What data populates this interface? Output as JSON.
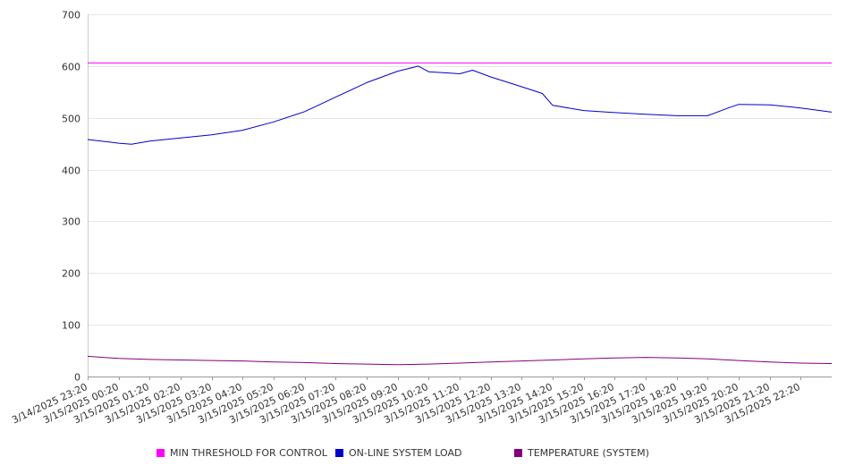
{
  "chart_data": {
    "type": "line",
    "title": "",
    "xlabel": "",
    "ylabel": "",
    "ylim": [
      0,
      700
    ],
    "yticks": [
      0,
      100,
      200,
      300,
      400,
      500,
      600,
      700
    ],
    "grid": true,
    "legend_position": "bottom",
    "x_start": "3/14/2025 23:20",
    "x_step_minutes": 5,
    "x_points": 289,
    "x_tick_labels": [
      "3/14/2025 23:20",
      "3/15/2025 00:20",
      "3/15/2025 01:20",
      "3/15/2025 02:20",
      "3/15/2025 03:20",
      "3/15/2025 04:20",
      "3/15/2025 05:20",
      "3/15/2025 06:20",
      "3/15/2025 07:20",
      "3/15/2025 08:20",
      "3/15/2025 09:20",
      "3/15/2025 10:20",
      "3/15/2025 11:20",
      "3/15/2025 12:20",
      "3/15/2025 13:20",
      "3/15/2025 14:20",
      "3/15/2025 15:20",
      "3/15/2025 16:20",
      "3/15/2025 17:20",
      "3/15/2025 18:20",
      "3/15/2025 19:20",
      "3/15/2025 20:20",
      "3/15/2025 21:20",
      "3/15/2025 22:20"
    ],
    "series": [
      {
        "name": "MIN THRESHOLD FOR CONTROL",
        "color": "#ff00ff",
        "x": [
          "3/14/2025 23:20",
          "3/15/2025 23:20"
        ],
        "values": [
          606,
          606
        ]
      },
      {
        "name": "ON-LINE SYSTEM LOAD",
        "color": "#0000cc",
        "x": [
          "3/14/2025 23:20",
          "3/15/2025 00:20",
          "3/15/2025 00:45",
          "3/15/2025 01:20",
          "3/15/2025 02:20",
          "3/15/2025 03:20",
          "3/15/2025 04:20",
          "3/15/2025 05:20",
          "3/15/2025 06:20",
          "3/15/2025 07:20",
          "3/15/2025 08:20",
          "3/15/2025 09:20",
          "3/15/2025 10:00",
          "3/15/2025 10:20",
          "3/15/2025 11:20",
          "3/15/2025 11:45",
          "3/15/2025 12:20",
          "3/15/2025 13:20",
          "3/15/2025 14:00",
          "3/15/2025 14:20",
          "3/15/2025 15:20",
          "3/15/2025 16:20",
          "3/15/2025 17:20",
          "3/15/2025 18:20",
          "3/15/2025 19:20",
          "3/15/2025 20:00",
          "3/15/2025 20:20",
          "3/15/2025 21:20",
          "3/15/2025 22:20",
          "3/15/2025 23:20"
        ],
        "values": [
          458,
          451,
          449,
          455,
          461,
          467,
          476,
          492,
          512,
          540,
          568,
          590,
          600,
          589,
          585,
          592,
          579,
          560,
          547,
          524,
          514,
          510,
          507,
          504,
          504,
          519,
          526,
          525,
          519,
          511
        ]
      },
      {
        "name": "TEMPERATURE (SYSTEM)",
        "color": "#800080",
        "x": [
          "3/14/2025 23:20",
          "3/15/2025 00:20",
          "3/15/2025 01:20",
          "3/15/2025 02:20",
          "3/15/2025 03:20",
          "3/15/2025 04:20",
          "3/15/2025 05:20",
          "3/15/2025 06:20",
          "3/15/2025 07:20",
          "3/15/2025 08:20",
          "3/15/2025 09:20",
          "3/15/2025 10:20",
          "3/15/2025 11:20",
          "3/15/2025 12:20",
          "3/15/2025 13:20",
          "3/15/2025 14:20",
          "3/15/2025 15:20",
          "3/15/2025 16:20",
          "3/15/2025 17:20",
          "3/15/2025 18:20",
          "3/15/2025 19:20",
          "3/15/2025 20:20",
          "3/15/2025 21:20",
          "3/15/2025 22:20",
          "3/15/2025 23:20"
        ],
        "values": [
          39,
          35,
          33,
          32,
          31,
          30,
          28,
          27,
          25,
          24,
          23,
          24,
          26,
          28,
          30,
          32,
          34,
          36,
          37,
          36,
          34,
          31,
          28,
          26,
          25
        ]
      }
    ]
  }
}
